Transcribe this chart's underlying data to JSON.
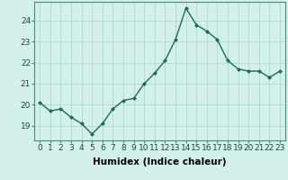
{
  "x": [
    0,
    1,
    2,
    3,
    4,
    5,
    6,
    7,
    8,
    9,
    10,
    11,
    12,
    13,
    14,
    15,
    16,
    17,
    18,
    19,
    20,
    21,
    22,
    23
  ],
  "y": [
    20.1,
    19.7,
    19.8,
    19.4,
    19.1,
    18.6,
    19.1,
    19.8,
    20.2,
    20.3,
    21.0,
    21.5,
    22.1,
    23.1,
    24.6,
    23.8,
    23.5,
    23.1,
    22.1,
    21.7,
    21.6,
    21.6,
    21.3,
    21.6
  ],
  "line_color": "#1a6b5a",
  "marker": "D",
  "marker_size": 2.0,
  "bg_color": "#d4f0ec",
  "grid_color": "#b0d8d0",
  "xlabel": "Humidex (Indice chaleur)",
  "xlim": [
    -0.5,
    23.5
  ],
  "ylim": [
    18.3,
    24.9
  ],
  "yticks": [
    19,
    20,
    21,
    22,
    23,
    24
  ],
  "xtick_labels": [
    "0",
    "1",
    "2",
    "3",
    "4",
    "5",
    "6",
    "7",
    "8",
    "9",
    "10",
    "11",
    "12",
    "13",
    "14",
    "15",
    "16",
    "17",
    "18",
    "19",
    "20",
    "21",
    "22",
    "23"
  ],
  "tick_fontsize": 6.5,
  "xlabel_fontsize": 7.5,
  "linewidth": 1.0
}
